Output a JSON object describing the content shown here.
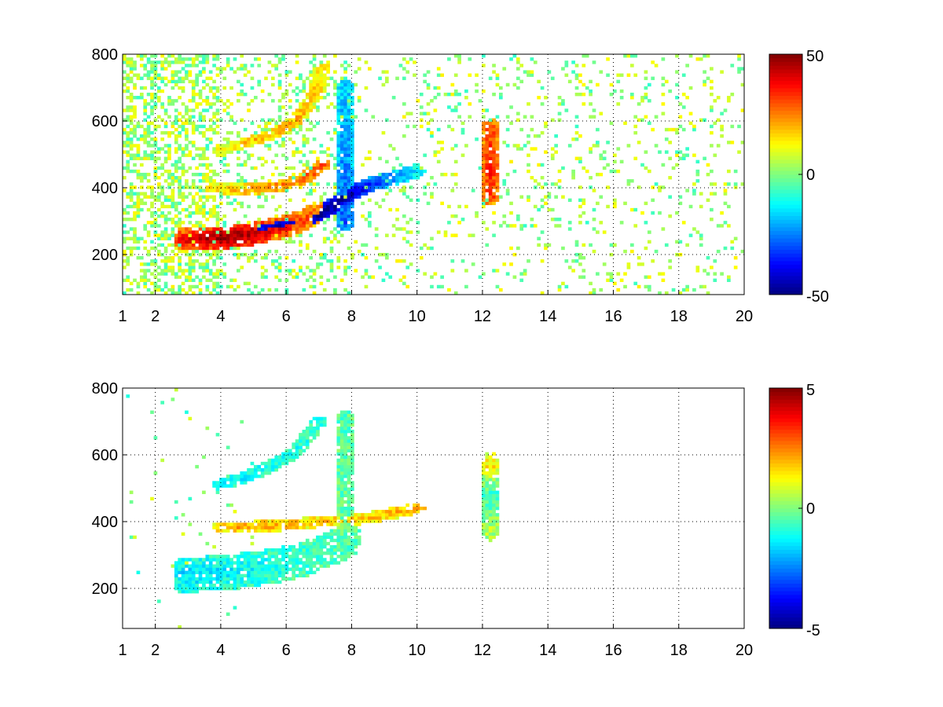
{
  "chart_data": [
    {
      "type": "heatmap",
      "title": "",
      "xlabel": "",
      "ylabel": "",
      "xlim": [
        1,
        20
      ],
      "ylim": [
        80,
        800
      ],
      "xticks": [
        "1",
        "2",
        "4",
        "6",
        "8",
        "10",
        "12",
        "14",
        "16",
        "18",
        "20"
      ],
      "xtick_values": [
        1,
        2,
        4,
        6,
        8,
        10,
        12,
        14,
        16,
        18,
        20
      ],
      "yticks": [
        "200",
        "400",
        "600",
        "800"
      ],
      "ytick_values": [
        200,
        400,
        600,
        800
      ],
      "grid": true,
      "colormap": "jet",
      "colorbar": {
        "min": -50,
        "max": 50,
        "ticks": [
          "50",
          "0",
          "-50"
        ],
        "tick_values": [
          50,
          0,
          -50
        ]
      },
      "features": [
        {
          "name": "lower branch",
          "points": [
            [
              2.8,
              245,
              35
            ],
            [
              3.5,
              248,
              45
            ],
            [
              4.2,
              252,
              48
            ],
            [
              5.0,
              262,
              45
            ],
            [
              5.8,
              280,
              38
            ],
            [
              6.5,
              300,
              30
            ],
            [
              7.0,
              330,
              28
            ]
          ],
          "spread": 28
        },
        {
          "name": "lower ridge",
          "points": [
            [
              5.2,
              275,
              -40
            ],
            [
              6.0,
              290,
              -45
            ],
            [
              6.8,
              310,
              -48
            ],
            [
              7.5,
              350,
              -50
            ],
            [
              8.0,
              385,
              -45
            ],
            [
              8.6,
              410,
              -35
            ],
            [
              9.3,
              430,
              -25
            ],
            [
              10.0,
              450,
              -15
            ]
          ],
          "spread": 18
        },
        {
          "name": "middle branch",
          "points": [
            [
              3.8,
              400,
              15
            ],
            [
              4.8,
              395,
              22
            ],
            [
              5.8,
              405,
              25
            ],
            [
              6.6,
              430,
              28
            ],
            [
              7.1,
              470,
              30
            ]
          ],
          "spread": 14
        },
        {
          "name": "upper branch",
          "points": [
            [
              4.0,
              510,
              12
            ],
            [
              4.8,
              535,
              18
            ],
            [
              5.6,
              560,
              22
            ],
            [
              6.3,
              600,
              20
            ],
            [
              6.9,
              680,
              18
            ],
            [
              7.1,
              760,
              15
            ]
          ],
          "spread": 12
        },
        {
          "name": "vertical streak",
          "points": [
            [
              7.8,
              300,
              -30
            ],
            [
              7.8,
              500,
              -25
            ],
            [
              7.8,
              700,
              -18
            ]
          ],
          "spread": 25
        },
        {
          "name": "line at 12.2",
          "points": [
            [
              12.25,
              380,
              32
            ],
            [
              12.25,
              480,
              36
            ],
            [
              12.25,
              575,
              30
            ]
          ],
          "spread": 30
        }
      ]
    },
    {
      "type": "heatmap",
      "title": "",
      "xlabel": "",
      "ylabel": "",
      "xlim": [
        1,
        20
      ],
      "ylim": [
        80,
        800
      ],
      "xticks": [
        "1",
        "2",
        "4",
        "6",
        "8",
        "10",
        "12",
        "14",
        "16",
        "18",
        "20"
      ],
      "xtick_values": [
        1,
        2,
        4,
        6,
        8,
        10,
        12,
        14,
        16,
        18,
        20
      ],
      "yticks": [
        "200",
        "400",
        "600",
        "800"
      ],
      "ytick_values": [
        200,
        400,
        600,
        800
      ],
      "grid": true,
      "colormap": "jet",
      "colorbar": {
        "min": -5,
        "max": 5,
        "ticks": [
          "5",
          "0",
          "-5"
        ],
        "tick_values": [
          5,
          0,
          -5
        ]
      },
      "features": [
        {
          "name": "lower branch",
          "points": [
            [
              2.8,
              240,
              -1.5
            ],
            [
              3.8,
              245,
              -1.4
            ],
            [
              4.8,
              255,
              -1.2
            ],
            [
              5.8,
              270,
              -1.0
            ],
            [
              6.6,
              290,
              -0.8
            ],
            [
              7.4,
              320,
              -0.6
            ],
            [
              8.0,
              350,
              -0.5
            ]
          ],
          "spread": 45
        },
        {
          "name": "middle branch",
          "points": [
            [
              4.0,
              385,
              2.0
            ],
            [
              5.0,
              385,
              2.2
            ],
            [
              6.0,
              390,
              2.0
            ],
            [
              7.0,
              400,
              1.8
            ],
            [
              8.0,
              405,
              1.7
            ],
            [
              9.0,
              420,
              1.9
            ],
            [
              10.0,
              440,
              2.2
            ]
          ],
          "spread": 14
        },
        {
          "name": "upper branch",
          "points": [
            [
              4.0,
              510,
              -1.4
            ],
            [
              4.8,
              535,
              -1.3
            ],
            [
              5.6,
              570,
              -1.2
            ],
            [
              6.3,
              610,
              -1.0
            ],
            [
              7.0,
              700,
              -0.9
            ]
          ],
          "spread": 14
        },
        {
          "name": "vertical streak",
          "points": [
            [
              7.8,
              350,
              -0.3
            ],
            [
              7.8,
              520,
              -0.4
            ],
            [
              7.8,
              700,
              -0.5
            ]
          ],
          "spread": 30
        },
        {
          "name": "line at 12.2",
          "points": [
            [
              12.25,
              380,
              0.5
            ],
            [
              12.25,
              480,
              -1.0
            ],
            [
              12.25,
              570,
              1.5
            ]
          ],
          "spread": 32
        }
      ]
    }
  ]
}
